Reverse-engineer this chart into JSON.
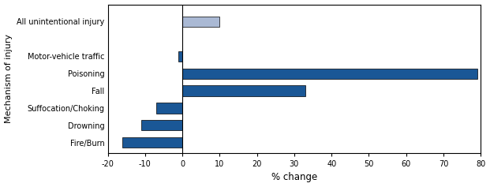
{
  "categories": [
    "Fire/Burn",
    "Drowning",
    "Suffocation/Choking",
    "Fall",
    "Poisoning",
    "Motor-vehicle traffic",
    "All unintentional injury"
  ],
  "values": [
    -16,
    -11,
    -7,
    33,
    79,
    -1,
    10
  ],
  "colors": [
    "#1a5796",
    "#1a5796",
    "#1a5796",
    "#1a5796",
    "#1a5796",
    "#1a5796",
    "#aab9d4"
  ],
  "xlabel": "% change",
  "ylabel": "Mechanism of injury",
  "xlim": [
    -20,
    80
  ],
  "xticks": [
    -20,
    -10,
    0,
    10,
    20,
    30,
    40,
    50,
    60,
    70,
    80
  ],
  "bar_height": 0.6,
  "bg_color": "#ffffff",
  "edge_color": "#000000",
  "y_positions": [
    0,
    1,
    2,
    3,
    4,
    5,
    7
  ],
  "ytick_fontsize": 7.0,
  "xlabel_fontsize": 8.5,
  "ylabel_fontsize": 8.0,
  "xtick_fontsize": 7.0
}
